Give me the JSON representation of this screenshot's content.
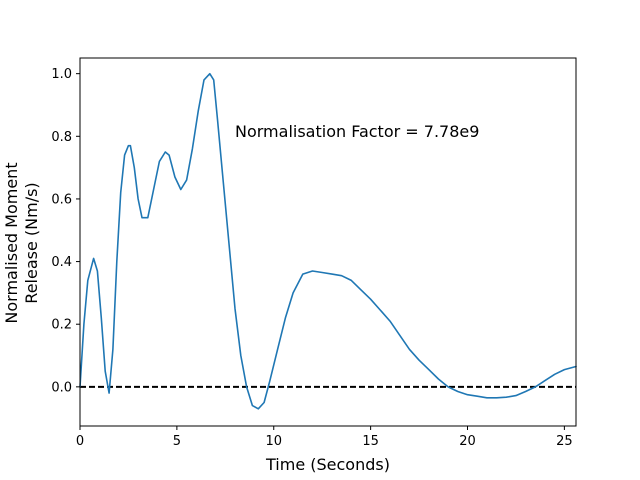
{
  "chart_data": {
    "type": "line",
    "title": "",
    "xlabel": "Time (Seconds)",
    "ylabel_lines": [
      "Normalised Moment",
      "Release (Nm/s)"
    ],
    "xlim": [
      0,
      25.6
    ],
    "ylim": [
      -0.125,
      1.05
    ],
    "x_ticks": [
      0,
      5,
      10,
      15,
      20,
      25
    ],
    "x_tick_labels": [
      "0",
      "5",
      "10",
      "15",
      "20",
      "25"
    ],
    "y_ticks": [
      0.0,
      0.2,
      0.4,
      0.6,
      0.8,
      1.0
    ],
    "y_tick_labels": [
      "0.0",
      "0.2",
      "0.4",
      "0.6",
      "0.8",
      "1.0"
    ],
    "grid": false,
    "annotation": {
      "text": "Normalisation Factor = 7.78e9",
      "x": 8.0,
      "y": 0.8
    },
    "reference_line": {
      "y": 0.0,
      "style": "dashed",
      "color": "#000000"
    },
    "series": [
      {
        "color": "#1f77b4",
        "x": [
          0.0,
          0.2,
          0.4,
          0.7,
          0.9,
          1.1,
          1.3,
          1.5,
          1.7,
          1.9,
          2.1,
          2.3,
          2.5,
          2.6,
          2.8,
          3.0,
          3.2,
          3.5,
          3.8,
          4.1,
          4.4,
          4.6,
          4.9,
          5.2,
          5.5,
          5.8,
          6.1,
          6.4,
          6.7,
          6.9,
          7.1,
          7.4,
          7.7,
          8.0,
          8.3,
          8.6,
          8.9,
          9.2,
          9.5,
          9.8,
          10.2,
          10.6,
          11.0,
          11.5,
          12.0,
          12.5,
          13.0,
          13.5,
          14.0,
          14.5,
          15.0,
          15.5,
          16.0,
          16.5,
          17.0,
          17.5,
          18.0,
          18.5,
          19.0,
          19.5,
          20.0,
          20.5,
          21.0,
          21.5,
          22.0,
          22.5,
          23.0,
          23.5,
          24.0,
          24.5,
          25.0,
          25.6
        ],
        "y": [
          0.0,
          0.2,
          0.34,
          0.41,
          0.37,
          0.22,
          0.05,
          -0.02,
          0.12,
          0.4,
          0.62,
          0.74,
          0.77,
          0.77,
          0.7,
          0.6,
          0.54,
          0.54,
          0.63,
          0.72,
          0.75,
          0.74,
          0.67,
          0.63,
          0.66,
          0.76,
          0.88,
          0.98,
          1.0,
          0.98,
          0.85,
          0.65,
          0.45,
          0.25,
          0.1,
          0.0,
          -0.06,
          -0.07,
          -0.05,
          0.02,
          0.12,
          0.22,
          0.3,
          0.36,
          0.37,
          0.365,
          0.36,
          0.355,
          0.34,
          0.31,
          0.28,
          0.245,
          0.21,
          0.165,
          0.12,
          0.085,
          0.055,
          0.025,
          0.0,
          -0.015,
          -0.025,
          -0.03,
          -0.035,
          -0.035,
          -0.033,
          -0.028,
          -0.015,
          0.0,
          0.02,
          0.04,
          0.055,
          0.065
        ]
      }
    ]
  }
}
